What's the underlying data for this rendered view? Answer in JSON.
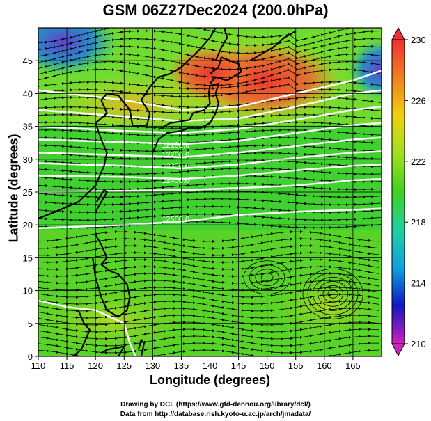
{
  "title": "GSM 06Z27Dec2024 (200.0hPa)",
  "x_axis_label": "Longitude (degrees)",
  "y_axis_label": "Latitude  (degrees)",
  "credit_line1": "Drawing by DCL (https://www.gfd-dennou.org/library/dcl/)",
  "credit_line2": "Data from http://database.rish.kyoto-u.ac.jp/arch/jmadata/",
  "x_ticks": [
    "110",
    "115",
    "120",
    "125",
    "130",
    "135",
    "140",
    "145",
    "150",
    "155",
    "160",
    "165"
  ],
  "y_ticks": [
    "0",
    "5",
    "10",
    "15",
    "20",
    "25",
    "30",
    "35",
    "40",
    "45"
  ],
  "colorbar_ticks": [
    "210",
    "214",
    "218",
    "222",
    "226",
    "230"
  ],
  "contour_labels": [
    "12100.0",
    "12200.0",
    "12300.0",
    "12400.0",
    "12500.0"
  ],
  "colors": {
    "colorbar_stops": [
      "#d020c0",
      "#1018c0",
      "#10a0e0",
      "#20d0a0",
      "#40d020",
      "#a0e020",
      "#f0d010",
      "#f08020",
      "#f03030"
    ]
  },
  "chart_data": {
    "type": "heatmap",
    "title": "GSM 06Z27Dec2024 (200.0hPa)",
    "xlabel": "Longitude (degrees)",
    "ylabel": "Latitude  (degrees)",
    "xlim": [
      110,
      170
    ],
    "ylim": [
      0,
      50
    ],
    "colorbar_range": [
      210,
      230
    ],
    "contour_levels": [
      12100.0,
      12200.0,
      12300.0,
      12400.0,
      12500.0
    ],
    "overlay": "wind streamlines"
  }
}
